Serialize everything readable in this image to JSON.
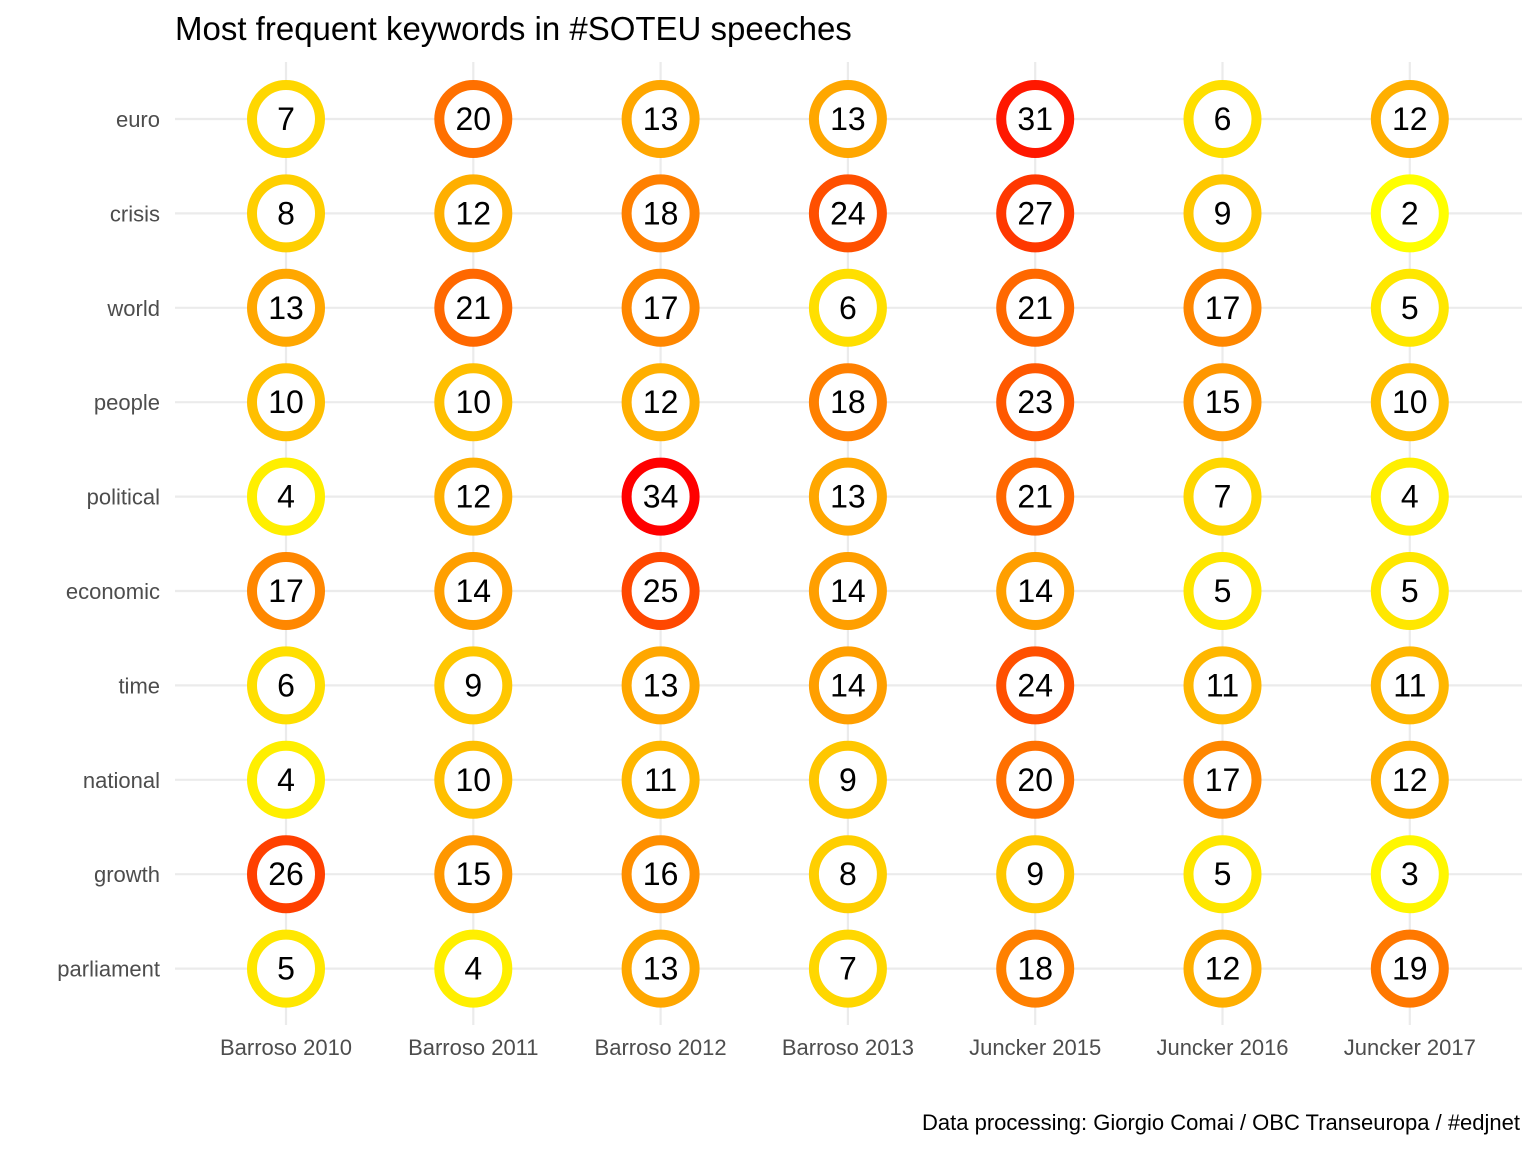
{
  "chart_data": {
    "type": "heatmap",
    "title": "Most frequent keywords in #SOTEU speeches",
    "caption": "Data processing:  Giorgio Comai / OBC Transeuropa / #edjnet",
    "xlabel": "",
    "ylabel": "",
    "grid": true,
    "legend": "none",
    "x": [
      "Barroso 2010",
      "Barroso 2011",
      "Barroso 2012",
      "Barroso 2013",
      "Juncker 2015",
      "Juncker 2016",
      "Juncker 2017"
    ],
    "y": [
      "euro",
      "crisis",
      "world",
      "people",
      "political",
      "economic",
      "time",
      "national",
      "growth",
      "parliament"
    ],
    "values": [
      [
        7,
        20,
        13,
        13,
        31,
        6,
        12
      ],
      [
        8,
        12,
        18,
        24,
        27,
        9,
        2
      ],
      [
        13,
        21,
        17,
        6,
        21,
        17,
        5
      ],
      [
        10,
        10,
        12,
        18,
        23,
        15,
        10
      ],
      [
        4,
        12,
        34,
        13,
        21,
        7,
        4
      ],
      [
        17,
        14,
        25,
        14,
        14,
        5,
        5
      ],
      [
        6,
        9,
        13,
        14,
        24,
        11,
        11
      ],
      [
        4,
        10,
        11,
        9,
        20,
        17,
        12
      ],
      [
        26,
        15,
        16,
        8,
        9,
        5,
        3
      ],
      [
        5,
        4,
        13,
        7,
        18,
        12,
        19
      ]
    ],
    "color_scale": {
      "low": "#ffff00",
      "high": "#ff0000",
      "min": 2,
      "max": 34
    }
  }
}
